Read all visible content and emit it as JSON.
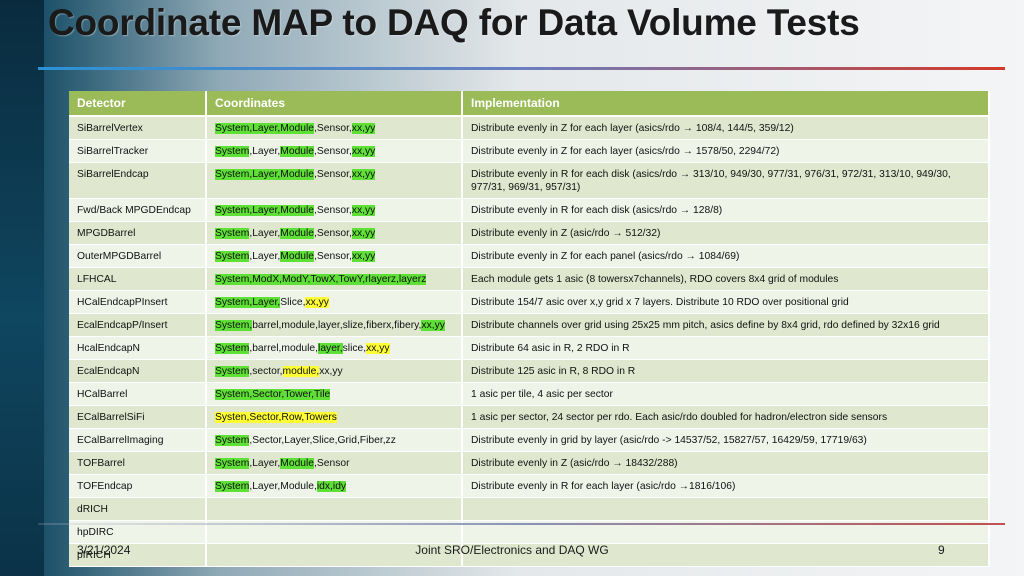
{
  "title": "Coordinate MAP to DAQ for Data Volume Tests",
  "colors": {
    "header": "#9bbb59",
    "highlight_green": "#5ee036",
    "highlight_yellow": "#ffff33"
  },
  "table": {
    "headers": [
      "Detector",
      "Coordinates",
      "Implementation"
    ],
    "rows": [
      {
        "detector": "SiBarrelVertex",
        "coords": [
          [
            "System,Layer,Module",
            "g"
          ],
          [
            ",Sensor,",
            ""
          ],
          [
            "xx,yy",
            "g"
          ]
        ],
        "impl": "Distribute evenly in Z for each layer (asics/rdo → 108/4, 144/5, 359/12)"
      },
      {
        "detector": "SiBarrelTracker",
        "coords": [
          [
            "System",
            "g"
          ],
          [
            ",Layer,",
            ""
          ],
          [
            "Module",
            "g"
          ],
          [
            ",Sensor,",
            ""
          ],
          [
            "xx,yy",
            "g"
          ]
        ],
        "impl": "Distribute evenly in Z for each layer (asics/rdo → 1578/50, 2294/72)"
      },
      {
        "detector": "SiBarrelEndcap",
        "coords": [
          [
            "System,Layer,Module",
            "g"
          ],
          [
            ",Sensor,",
            ""
          ],
          [
            "xx,yy",
            "g"
          ]
        ],
        "impl": "Distribute evenly in R for each disk (asics/rdo → 313/10, 949/30, 977/31, 976/31, 972/31, 313/10, 949/30, 977/31, 969/31, 957/31)"
      },
      {
        "detector": "Fwd/Back MPGDEndcap",
        "coords": [
          [
            "System,Layer,Module",
            "g"
          ],
          [
            ",Sensor,",
            ""
          ],
          [
            "xx,yy",
            "g"
          ]
        ],
        "impl": "Distribute evenly in R for each disk (asics/rdo → 128/8)"
      },
      {
        "detector": "MPGDBarrel",
        "coords": [
          [
            "System",
            "g"
          ],
          [
            ",Layer,",
            ""
          ],
          [
            "Module",
            "g"
          ],
          [
            ",Sensor,",
            ""
          ],
          [
            "xx,yy",
            "g"
          ]
        ],
        "impl": "Distribute evenly in Z (asic/rdo → 512/32)"
      },
      {
        "detector": "OuterMPGDBarrel",
        "coords": [
          [
            "System",
            "g"
          ],
          [
            ",Layer,",
            ""
          ],
          [
            "Module",
            "g"
          ],
          [
            ",Sensor,",
            ""
          ],
          [
            "xx,yy",
            "g"
          ]
        ],
        "impl": "Distribute evenly in Z for each panel (asics/rdo → 1084/69)"
      },
      {
        "detector": "LFHCAL",
        "coords": [
          [
            "System,ModX,ModY,TowX,TowY,rlayerz,layerz",
            "g"
          ]
        ],
        "impl": "Each module gets 1 asic (8 towersx7channels), RDO covers 8x4 grid of modules"
      },
      {
        "detector": "HCalEndcapPInsert",
        "coords": [
          [
            "System,Layer,",
            "g"
          ],
          [
            "Slice,",
            ""
          ],
          [
            "xx,yy",
            "y"
          ]
        ],
        "impl": "Distribute 154/7 asic over x,y  grid x 7 layers.   Distribute 10 RDO over positional grid"
      },
      {
        "detector": "EcalEndcapP/Insert",
        "coords": [
          [
            "System,",
            "g"
          ],
          [
            "barrel,module,layer,slize,fiberx,fibery,",
            ""
          ],
          [
            "xx,yy",
            "g"
          ]
        ],
        "impl": "Distribute channels over grid using 25x25 mm pitch, asics define by 8x4 grid, rdo defined by 32x16 grid"
      },
      {
        "detector": "HcalEndcapN",
        "coords": [
          [
            "System",
            "g"
          ],
          [
            ",barrel,module,",
            ""
          ],
          [
            "layer,",
            "g"
          ],
          [
            "slice,",
            ""
          ],
          [
            "xx,yy",
            "y"
          ]
        ],
        "impl": "Distribute 64 asic in R, 2 RDO in R"
      },
      {
        "detector": "EcalEndcapN",
        "coords": [
          [
            "System",
            "g"
          ],
          [
            ",sector,",
            ""
          ],
          [
            "module,",
            "y"
          ],
          [
            "xx,yy",
            ""
          ]
        ],
        "impl": "Distribute 125 asic in R, 8 RDO in R"
      },
      {
        "detector": "HCalBarrel",
        "coords": [
          [
            "System,Sector,Tower,Tile",
            "g"
          ]
        ],
        "impl": "1 asic per tile, 4 asic per sector"
      },
      {
        "detector": "ECalBarrelSiFi",
        "coords": [
          [
            "Systen,Sector,Row,Towers",
            "y"
          ]
        ],
        "impl": "1 asic per sector, 24 sector per rdo.   Each asic/rdo doubled for hadron/electron side sensors"
      },
      {
        "detector": "ECalBarrelImaging",
        "coords": [
          [
            "System",
            "g"
          ],
          [
            ",Sector,Layer,Slice,Grid,Fiber,zz",
            ""
          ]
        ],
        "impl": "Distribute evenly in grid by layer (asic/rdo -> 14537/52, 15827/57, 16429/59, 17719/63)"
      },
      {
        "detector": "TOFBarrel",
        "coords": [
          [
            "System",
            "g"
          ],
          [
            ",Layer,",
            ""
          ],
          [
            "Module",
            "g"
          ],
          [
            ",Sensor",
            ""
          ]
        ],
        "impl": "Distribute evenly in Z (asic/rdo → 18432/288)"
      },
      {
        "detector": "TOFEndcap",
        "coords": [
          [
            "System",
            "g"
          ],
          [
            ",Layer,Module,",
            ""
          ],
          [
            "idx,idy",
            "g"
          ]
        ],
        "impl": "Distribute evenly in R for each layer (asic/rdo →1816/106)"
      },
      {
        "detector": "dRICH",
        "coords": [],
        "impl": ""
      },
      {
        "detector": "hpDIRC",
        "coords": [],
        "impl": ""
      },
      {
        "detector": "pfRICH",
        "coords": [],
        "impl": ""
      }
    ]
  },
  "footer": {
    "date": "3/21/2024",
    "center": "Joint SRO/Electronics and DAQ WG",
    "page": "9"
  }
}
